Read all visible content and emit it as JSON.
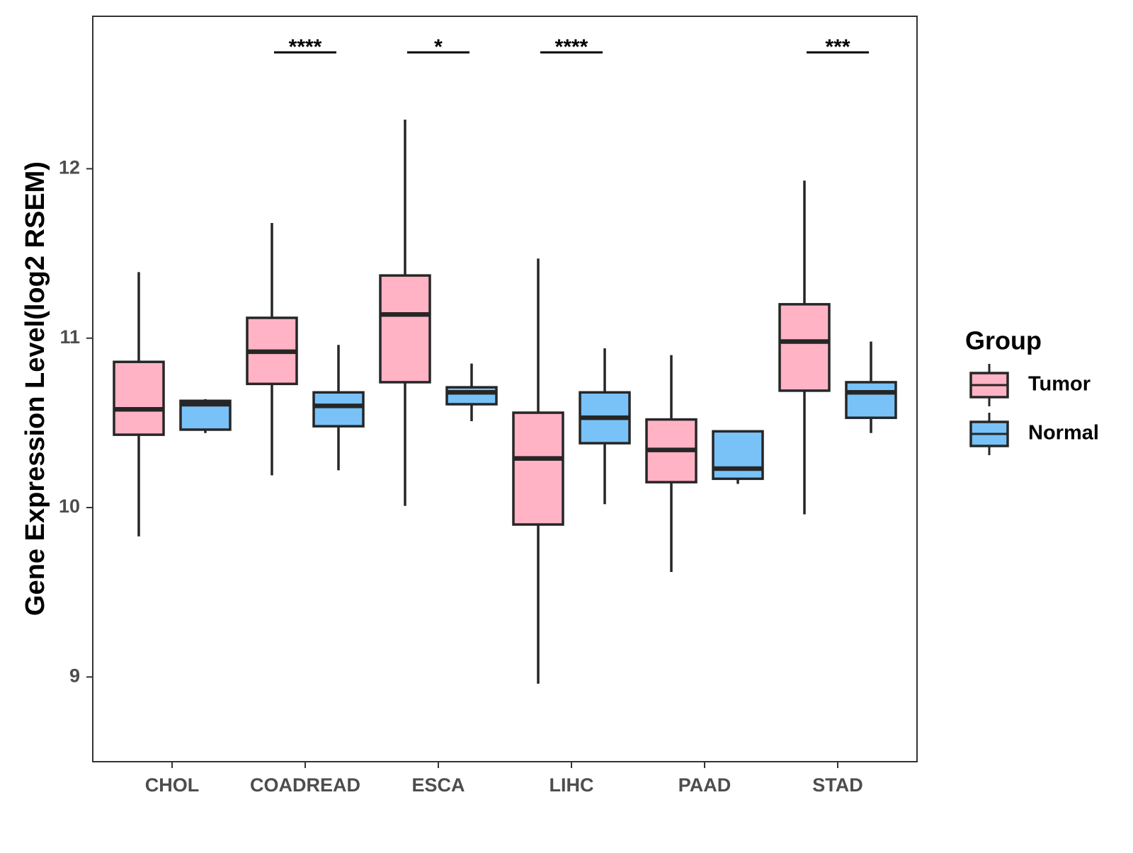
{
  "chart_data": {
    "type": "boxplot",
    "title": "",
    "xlabel": "",
    "ylabel": "Gene Expression Level(log2 RSEM)",
    "ylim": [
      8.5,
      12.9
    ],
    "yticks": [
      9,
      10,
      11,
      12
    ],
    "grid": false,
    "legend": {
      "title": "Group",
      "position": "right",
      "entries": [
        {
          "name": "Tumor",
          "color": "#FFB3C5"
        },
        {
          "name": "Normal",
          "color": "#78C2F8"
        }
      ]
    },
    "categories": [
      "CHOL",
      "COADREAD",
      "ESCA",
      "LIHC",
      "PAAD",
      "STAD"
    ],
    "series": [
      {
        "name": "Tumor",
        "color": "#FFB3C5",
        "boxes": [
          {
            "min": 9.83,
            "q1": 10.43,
            "median": 10.58,
            "q3": 10.86,
            "max": 11.39
          },
          {
            "min": 10.19,
            "q1": 10.73,
            "median": 10.92,
            "q3": 11.12,
            "max": 11.68
          },
          {
            "min": 10.01,
            "q1": 10.74,
            "median": 11.14,
            "q3": 11.37,
            "max": 12.29
          },
          {
            "min": 8.96,
            "q1": 9.9,
            "median": 10.29,
            "q3": 10.56,
            "max": 11.47
          },
          {
            "min": 9.62,
            "q1": 10.15,
            "median": 10.34,
            "q3": 10.52,
            "max": 10.9
          },
          {
            "min": 9.96,
            "q1": 10.69,
            "median": 10.98,
            "q3": 11.2,
            "max": 11.93
          }
        ]
      },
      {
        "name": "Normal",
        "color": "#78C2F8",
        "boxes": [
          {
            "min": 10.44,
            "q1": 10.46,
            "median": 10.61,
            "q3": 10.63,
            "max": 10.64
          },
          {
            "min": 10.22,
            "q1": 10.48,
            "median": 10.6,
            "q3": 10.68,
            "max": 10.96
          },
          {
            "min": 10.51,
            "q1": 10.61,
            "median": 10.68,
            "q3": 10.71,
            "max": 10.85
          },
          {
            "min": 10.02,
            "q1": 10.38,
            "median": 10.53,
            "q3": 10.68,
            "max": 10.94
          },
          {
            "min": 10.14,
            "q1": 10.17,
            "median": 10.23,
            "q3": 10.45,
            "max": 10.45
          },
          {
            "min": 10.44,
            "q1": 10.53,
            "median": 10.68,
            "q3": 10.74,
            "max": 10.98
          }
        ]
      }
    ],
    "annotations": [
      {
        "category": "COADREAD",
        "label": "****"
      },
      {
        "category": "ESCA",
        "label": "*"
      },
      {
        "category": "LIHC",
        "label": "****"
      },
      {
        "category": "STAD",
        "label": "***"
      }
    ]
  }
}
